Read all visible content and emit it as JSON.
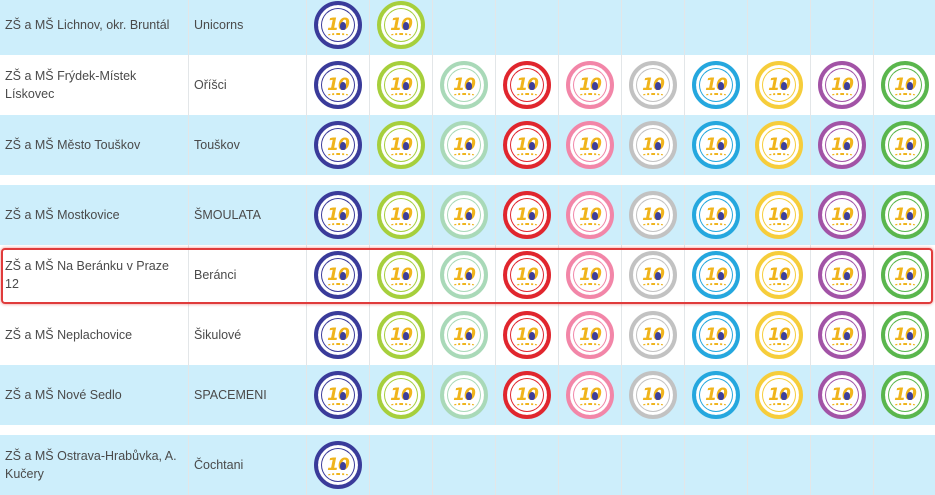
{
  "badge_icon_name": "team-badge-10-icon",
  "badge_colors": [
    "#3a3b9a",
    "#a6cf3c",
    "#a9d9b8",
    "#e0262e",
    "#f286a8",
    "#c2c2c2",
    "#25a7de",
    "#f6cd3b",
    "#a253a6",
    "#5ab64d"
  ],
  "rows": [
    {
      "school": "ZŠ a MŠ Lichnov, okr. Bruntál",
      "team": "Unicorns",
      "badges": 2,
      "highlighted": false
    },
    {
      "school": "ZŠ a MŠ Frýdek-Místek Lískovec",
      "team": "Oříšci",
      "badges": 10,
      "highlighted": false
    },
    {
      "school": "ZŠ a MŠ Město Touškov",
      "team": "Touškov",
      "badges": 10,
      "highlighted": false
    },
    {
      "school": "ZŠ a MŠ Mostkovice",
      "team": "ŠMOULATA",
      "badges": 10,
      "highlighted": false
    },
    {
      "school": "ZŠ a MŠ Na Beránku v Praze 12",
      "team": "Beránci",
      "badges": 10,
      "highlighted": true
    },
    {
      "school": "ZŠ a MŠ Neplachovice",
      "team": "Šikulové",
      "badges": 10,
      "highlighted": false
    },
    {
      "school": "ZŠ a MŠ Nové Sedlo",
      "team": "SPACEMENI",
      "badges": 10,
      "highlighted": false
    },
    {
      "school": "ZŠ a MŠ Ostrava-Hrabůvka, A. Kučery",
      "team": "Čochtani",
      "badges": 1,
      "highlighted": false
    }
  ]
}
